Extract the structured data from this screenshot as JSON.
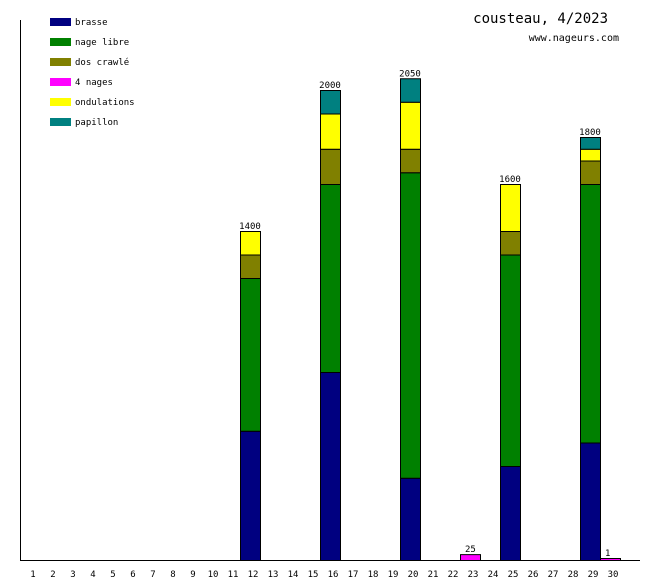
{
  "chart_data": {
    "type": "bar",
    "stacked": true,
    "title": "cousteau, 4/2023",
    "subtitle": "www.nageurs.com",
    "xlabel": "",
    "ylabel": "",
    "ylim": [
      0,
      2300
    ],
    "legend_position": "top-left",
    "categories": [
      "1",
      "2",
      "3",
      "4",
      "5",
      "6",
      "7",
      "8",
      "9",
      "10",
      "11",
      "12",
      "13",
      "14",
      "15",
      "16",
      "17",
      "18",
      "19",
      "20",
      "21",
      "22",
      "23",
      "24",
      "25",
      "26",
      "27",
      "28",
      "29",
      "30"
    ],
    "series": [
      {
        "name": "brasse",
        "color": "#000080",
        "values": [
          0,
          0,
          0,
          0,
          0,
          0,
          0,
          0,
          0,
          0,
          0,
          550,
          0,
          0,
          0,
          800,
          0,
          0,
          0,
          350,
          0,
          0,
          0,
          0,
          400,
          0,
          0,
          0,
          500,
          0
        ]
      },
      {
        "name": "nage libre",
        "color": "#008000",
        "values": [
          0,
          0,
          0,
          0,
          0,
          0,
          0,
          0,
          0,
          0,
          0,
          650,
          0,
          0,
          0,
          800,
          0,
          0,
          0,
          1300,
          0,
          0,
          0,
          0,
          900,
          0,
          0,
          0,
          1100,
          0
        ]
      },
      {
        "name": "dos crawlé",
        "color": "#808000",
        "values": [
          0,
          0,
          0,
          0,
          0,
          0,
          0,
          0,
          0,
          0,
          0,
          100,
          0,
          0,
          0,
          150,
          0,
          0,
          0,
          100,
          0,
          0,
          0,
          0,
          100,
          0,
          0,
          0,
          100,
          0
        ]
      },
      {
        "name": "4 nages",
        "color": "#ff00ff",
        "values": [
          0,
          0,
          0,
          0,
          0,
          0,
          0,
          0,
          0,
          0,
          0,
          0,
          0,
          0,
          0,
          0,
          0,
          0,
          0,
          0,
          0,
          0,
          25,
          0,
          0,
          0,
          0,
          0,
          0,
          1
        ]
      },
      {
        "name": "ondulations",
        "color": "#ffff00",
        "values": [
          0,
          0,
          0,
          0,
          0,
          0,
          0,
          0,
          0,
          0,
          0,
          100,
          0,
          0,
          0,
          150,
          0,
          0,
          0,
          200,
          0,
          0,
          0,
          0,
          200,
          0,
          0,
          0,
          50,
          0
        ]
      },
      {
        "name": "papillon",
        "color": "#008080",
        "values": [
          0,
          0,
          0,
          0,
          0,
          0,
          0,
          0,
          0,
          0,
          0,
          0,
          0,
          0,
          0,
          100,
          0,
          0,
          0,
          100,
          0,
          0,
          0,
          0,
          0,
          0,
          0,
          0,
          50,
          0
        ]
      }
    ],
    "totals": {
      "12": "1400",
      "16": "2000",
      "20": "2050",
      "23": "25",
      "25": "1600",
      "29": "1800",
      "30": "1"
    }
  }
}
